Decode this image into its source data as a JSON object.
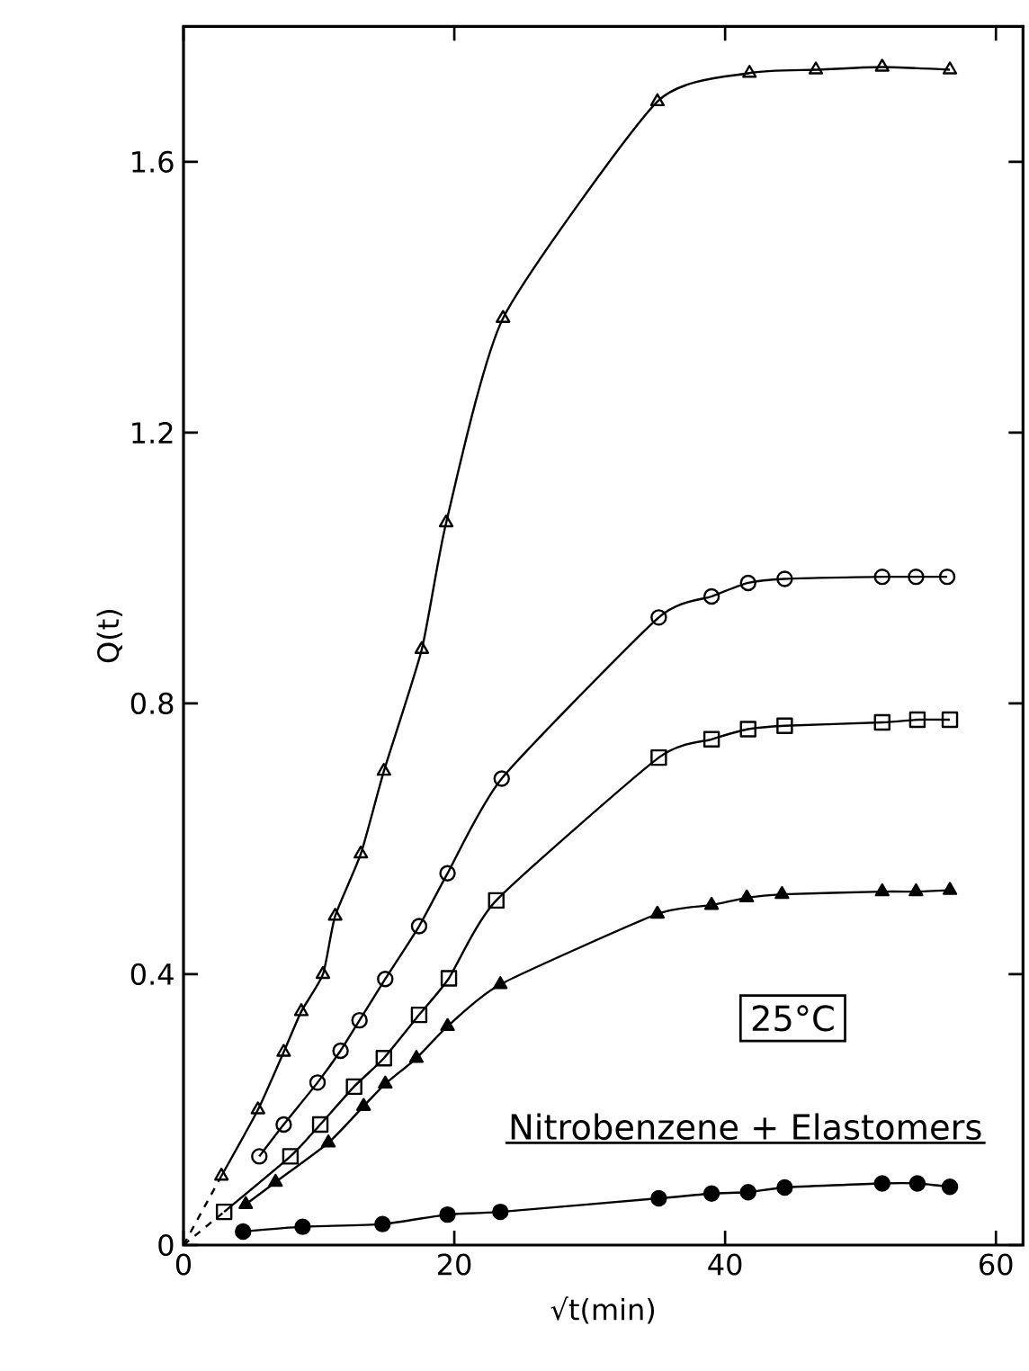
{
  "chart_data": {
    "type": "line",
    "xlabel": "√t(min)",
    "ylabel": "Q(t)",
    "xlim": [
      0,
      62
    ],
    "ylim": [
      0,
      1.8
    ],
    "xticks": [
      0,
      20,
      40,
      60
    ],
    "yticks": [
      0,
      0.4,
      0.8,
      1.2,
      1.6
    ],
    "line_style": "solid",
    "annotations": [
      "25°C",
      "Nitrobenzene + Elastomers"
    ],
    "series": [
      {
        "color": "#000000",
        "marker": "triangle",
        "x": [
          2.8,
          5.5,
          7.4,
          8.7,
          10.3,
          11.2,
          13.1,
          14.8,
          17.6,
          19.4,
          23.6,
          35.0,
          41.8,
          46.7,
          51.6,
          56.6
        ],
        "values": [
          0.102,
          0.2,
          0.285,
          0.345,
          0.4,
          0.486,
          0.578,
          0.7,
          0.88,
          1.067,
          1.369,
          1.689,
          1.731,
          1.736,
          1.74,
          1.736
        ]
      },
      {
        "color": "#000000",
        "marker": "circle",
        "x": [
          5.6,
          7.4,
          9.9,
          11.6,
          13.0,
          14.9,
          17.4,
          19.5,
          23.5,
          35.1,
          39.0,
          41.7,
          44.4,
          51.6,
          54.1,
          56.4
        ],
        "values": [
          0.131,
          0.178,
          0.24,
          0.287,
          0.332,
          0.393,
          0.471,
          0.549,
          0.689,
          0.927,
          0.958,
          0.978,
          0.984,
          0.987,
          0.987,
          0.987
        ]
      },
      {
        "color": "#000000",
        "marker": "square",
        "x": [
          3.0,
          7.9,
          10.1,
          12.6,
          14.8,
          17.4,
          19.6,
          23.1,
          35.1,
          39.0,
          41.7,
          44.4,
          51.6,
          54.2,
          56.6
        ],
        "values": [
          0.049,
          0.131,
          0.178,
          0.234,
          0.276,
          0.34,
          0.394,
          0.509,
          0.72,
          0.747,
          0.762,
          0.767,
          0.772,
          0.776,
          0.776
        ]
      },
      {
        "color": "#000000",
        "marker": "triangle",
        "colors": [
          "#000000",
          "#000000",
          "#000000",
          "#000000",
          "#000000",
          "#000000",
          "#000000",
          "#000000",
          "#000000",
          "#000000",
          "#000000",
          "#000000",
          "#000000",
          "#000000",
          "#000000"
        ],
        "x": [
          4.6,
          6.8,
          10.7,
          13.3,
          14.9,
          17.2,
          19.5,
          23.4,
          35.0,
          39.0,
          41.6,
          44.2,
          51.6,
          54.1,
          56.6
        ],
        "values": [
          0.06,
          0.093,
          0.151,
          0.205,
          0.238,
          0.276,
          0.323,
          0.385,
          0.489,
          0.502,
          0.513,
          0.518,
          0.522,
          0.522,
          0.524
        ]
      },
      {
        "color": "#000000",
        "marker": "circle",
        "colors": [
          "#000000",
          "#000000",
          "#000000",
          "#000000",
          "#000000",
          "#000000",
          "#000000",
          "#000000",
          "#000000",
          "#000000",
          "#000000",
          "#000000"
        ],
        "x": [
          4.4,
          8.8,
          14.7,
          19.5,
          23.4,
          35.1,
          39.0,
          41.7,
          44.4,
          51.6,
          54.2,
          56.6
        ],
        "values": [
          0.02,
          0.027,
          0.031,
          0.045,
          0.049,
          0.069,
          0.076,
          0.078,
          0.085,
          0.091,
          0.091,
          0.086
        ]
      },
      {
        "color": "#000000",
        "marker": "none",
        "line_style": "dashed",
        "x": [
          0,
          2.8
        ],
        "values": [
          0,
          0.102
        ]
      },
      {
        "color": "#000000",
        "marker": "none",
        "line_style": "dashed",
        "x": [
          0,
          3.0
        ],
        "values": [
          0,
          0.049
        ]
      }
    ]
  }
}
